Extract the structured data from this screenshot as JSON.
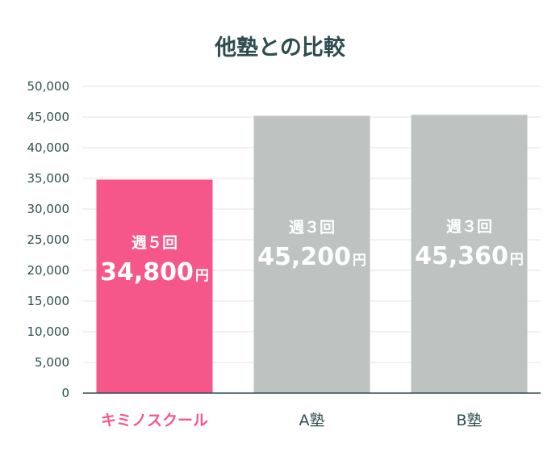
{
  "chart_data": {
    "type": "bar",
    "title": "他塾との比較",
    "categories": [
      "キミノスクール",
      "A塾",
      "B塾"
    ],
    "values": [
      34800,
      45200,
      45360
    ],
    "ylim": [
      0,
      50000
    ],
    "yticks": [
      "0",
      "5,000",
      "10,000",
      "15,000",
      "20,000",
      "25,000",
      "30,000",
      "35,000",
      "40,000",
      "45,000",
      "50,000"
    ],
    "grid": true,
    "bar_labels": [
      {
        "frequency": "週５回",
        "amount": "34,800",
        "unit": "円"
      },
      {
        "frequency": "週３回",
        "amount": "45,200",
        "unit": "円"
      },
      {
        "frequency": "週３回",
        "amount": "45,360",
        "unit": "円"
      }
    ],
    "colors": {
      "highlight": "#f5578b",
      "other": "#bec3c2",
      "text": "#2e4d4f"
    },
    "highlight_index": 0
  }
}
